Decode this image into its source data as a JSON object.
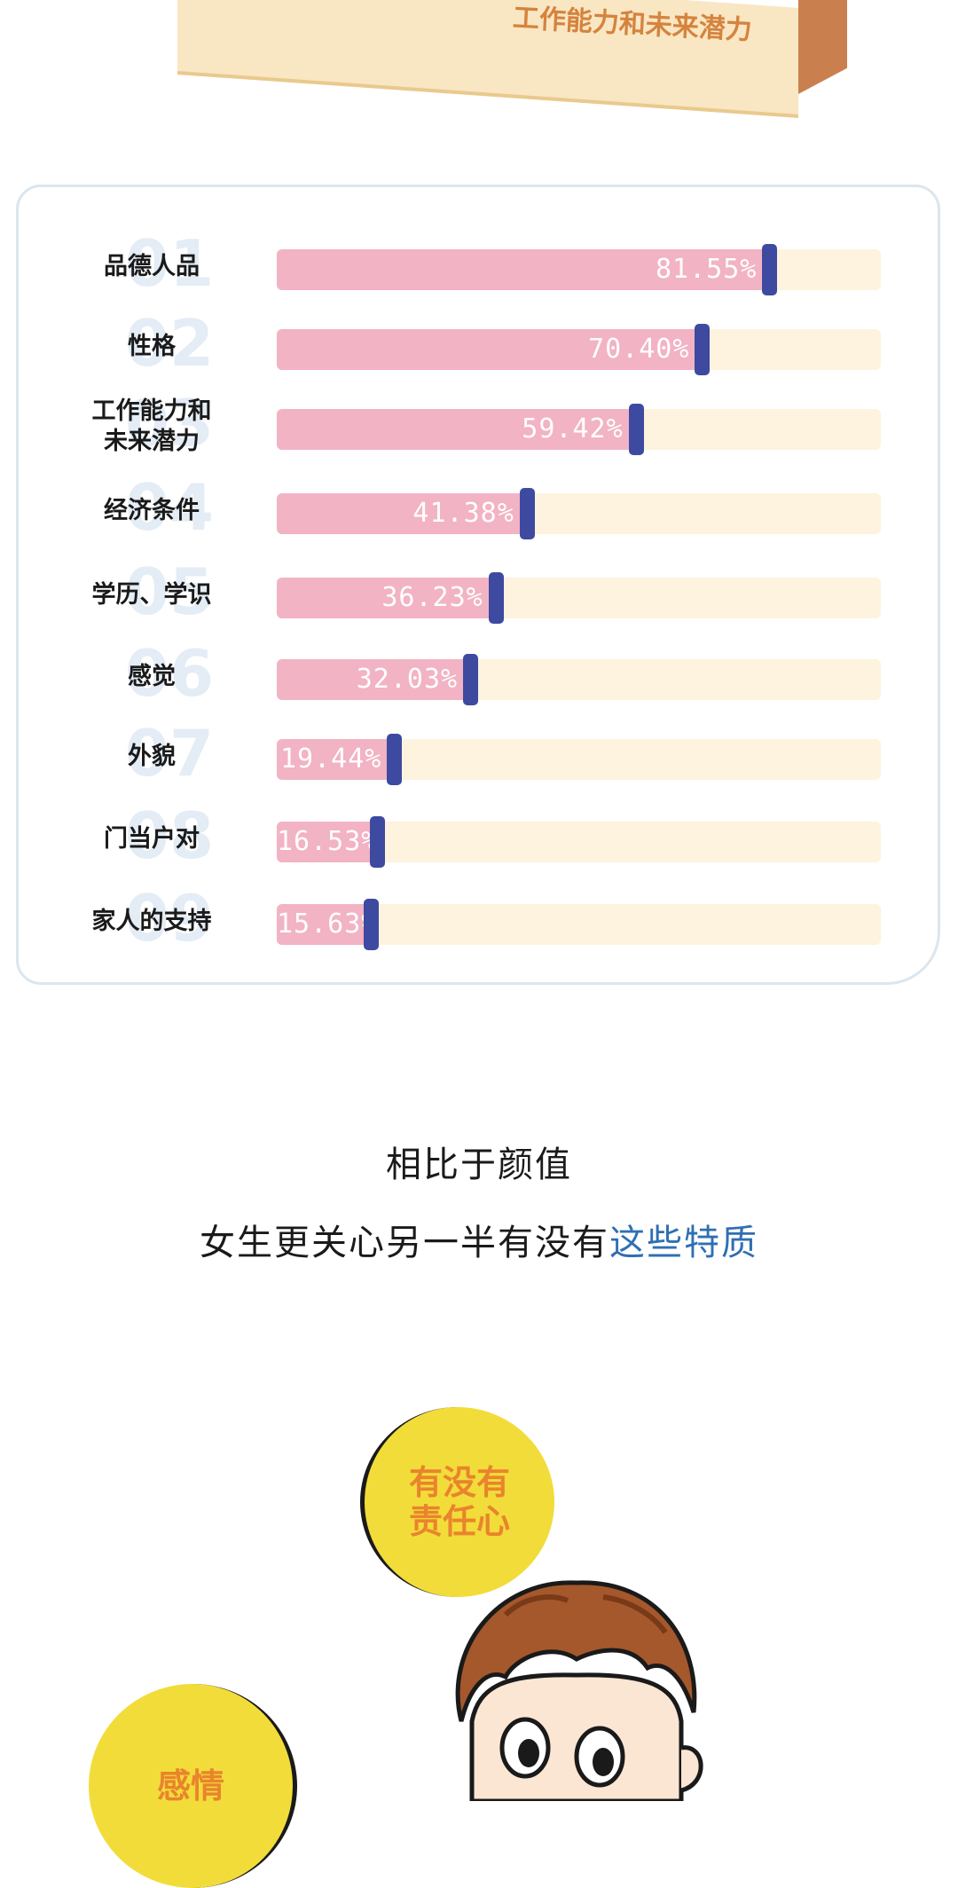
{
  "banner": {
    "label": "工作能力和未来潜力"
  },
  "chart_data": {
    "type": "bar",
    "orientation": "horizontal",
    "xlim": [
      0,
      100
    ],
    "categories": [
      "品德人品",
      "性格",
      "工作能力和\n未来潜力",
      "经济条件",
      "学历、学识",
      "感觉",
      "外貌",
      "门当户对",
      "家人的支持"
    ],
    "values": [
      81.55,
      70.4,
      59.42,
      41.38,
      36.23,
      32.03,
      19.44,
      16.53,
      15.63
    ],
    "labels": [
      "81.55%",
      "70.40%",
      "59.42%",
      "41.38%",
      "36.23%",
      "32.03%",
      "19.44%",
      "16.53%",
      "15.63%"
    ],
    "rank_numbers": [
      "01",
      "02",
      "03",
      "04",
      "05",
      "06",
      "07",
      "08",
      "09"
    ],
    "colors": {
      "fill": "#f2b3c4",
      "track": "#fdf3de",
      "marker": "#3e4aa0"
    }
  },
  "caption": {
    "line1": "相比于颜值",
    "line2_prefix": "女生更关心另一半有没有",
    "line2_highlight": "这些特质"
  },
  "bubbles": {
    "b1": "有没有\n责任心",
    "b2": "感情"
  }
}
